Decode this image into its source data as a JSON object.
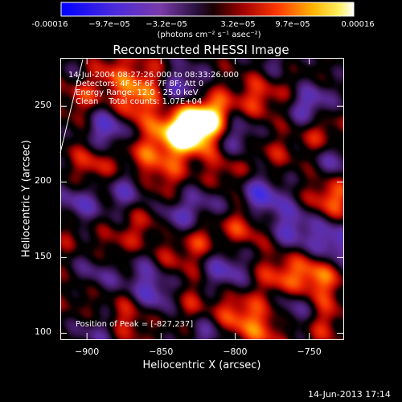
{
  "colorbar": {
    "tick_labels": [
      "-0.00016",
      "−9.7e−05",
      "−3.2e−05",
      "3.2e−05",
      "9.7e−05",
      "0.00016"
    ],
    "unit_label": "(photons cm⁻² s⁻¹ asec⁻²)",
    "range": [
      -0.00016,
      0.00016
    ]
  },
  "chart_data": {
    "type": "heatmap",
    "title": "Reconstructed RHESSI Image",
    "xlabel": "Heliocentric X (arcsec)",
    "ylabel": "Heliocentric Y (arcsec)",
    "xlim": [
      -918,
      -727
    ],
    "ylim": [
      96,
      282
    ],
    "x_ticks": [
      -900,
      -850,
      -800,
      -750
    ],
    "y_ticks": [
      100,
      150,
      200,
      250
    ],
    "x_tick_labels": [
      "−900",
      "−850",
      "−800",
      "−750"
    ],
    "y_tick_labels": [
      "100",
      "150",
      "200",
      "250"
    ],
    "annotations": [
      "14-Jul-2004 08:27:26.000 to 08:33:26.000",
      "Detectors: 4F 5F 6F 7F 8F; Att 0",
      "Energy Range: 12.0 - 25.0 keV",
      "Clean    Total counts: 1.07E+04"
    ],
    "peak_label": "Position of Peak = [-827,237]",
    "peak": [
      -827,
      237
    ],
    "colormap": "blue-purple-black-red-yellow-white",
    "colors": {
      "neg_min": "#2a22ff",
      "neg": "#5a2aa0",
      "zero": "#000000",
      "pos_low": "#c80000",
      "pos_mid": "#ff6a00",
      "pos_high": "#ffd200",
      "pos_max": "#ffffff"
    },
    "hot_spots": [
      {
        "x": -827,
        "y": 237,
        "v": 0.00016
      },
      {
        "x": -840,
        "y": 232,
        "v": 0.00013
      },
      {
        "x": -815,
        "y": 244,
        "v": 0.00011
      },
      {
        "x": -870,
        "y": 250,
        "v": 9e-05
      },
      {
        "x": -860,
        "y": 266,
        "v": 7e-05
      },
      {
        "x": -904,
        "y": 258,
        "v": 8e-05
      },
      {
        "x": -886,
        "y": 274,
        "v": 6e-05
      },
      {
        "x": -785,
        "y": 256,
        "v": 7e-05
      },
      {
        "x": -760,
        "y": 264,
        "v": 5e-05
      },
      {
        "x": -741,
        "y": 233,
        "v": 8e-05
      },
      {
        "x": -896,
        "y": 212,
        "v": 7e-05
      },
      {
        "x": -864,
        "y": 218,
        "v": 6e-05
      },
      {
        "x": -849,
        "y": 203,
        "v": 6e-05
      },
      {
        "x": -808,
        "y": 205,
        "v": 6e-05
      },
      {
        "x": -776,
        "y": 218,
        "v": 4e-05
      },
      {
        "x": -735,
        "y": 190,
        "v": 0.0001
      },
      {
        "x": -794,
        "y": 173,
        "v": 8e-05
      },
      {
        "x": -826,
        "y": 162,
        "v": 7e-05
      },
      {
        "x": -860,
        "y": 173,
        "v": 6e-05
      },
      {
        "x": -880,
        "y": 152,
        "v": 7e-05
      },
      {
        "x": -845,
        "y": 148,
        "v": 4e-05
      },
      {
        "x": -769,
        "y": 138,
        "v": 8e-05
      },
      {
        "x": -745,
        "y": 137,
        "v": 0.00011
      },
      {
        "x": -801,
        "y": 112,
        "v": 9e-05
      },
      {
        "x": -779,
        "y": 104,
        "v": 8e-05
      },
      {
        "x": -872,
        "y": 110,
        "v": 7e-05
      },
      {
        "x": -900,
        "y": 124,
        "v": 4e-05
      },
      {
        "x": -832,
        "y": 120,
        "v": 5e-05
      },
      {
        "x": -912,
        "y": 172,
        "v": 5e-05
      },
      {
        "x": -742,
        "y": 108,
        "v": 6e-05
      }
    ],
    "cold_spots": [
      {
        "x": -885,
        "y": 236,
        "v": -0.00012
      },
      {
        "x": -836,
        "y": 262,
        "v": -0.0001
      },
      {
        "x": -750,
        "y": 252,
        "v": -0.00012
      },
      {
        "x": -800,
        "y": 232,
        "v": -9e-05
      },
      {
        "x": -907,
        "y": 184,
        "v": -0.0001
      },
      {
        "x": -872,
        "y": 195,
        "v": -8e-05
      },
      {
        "x": -783,
        "y": 190,
        "v": -0.00012
      },
      {
        "x": -760,
        "y": 170,
        "v": -9e-05
      },
      {
        "x": -818,
        "y": 187,
        "v": -6e-05
      },
      {
        "x": -840,
        "y": 176,
        "v": -9e-05
      },
      {
        "x": -854,
        "y": 127,
        "v": -0.0001
      },
      {
        "x": -892,
        "y": 140,
        "v": -8e-05
      },
      {
        "x": -807,
        "y": 142,
        "v": -9e-05
      },
      {
        "x": -733,
        "y": 160,
        "v": -0.00011
      },
      {
        "x": -760,
        "y": 116,
        "v": -9e-05
      },
      {
        "x": -818,
        "y": 100,
        "v": -7e-05
      },
      {
        "x": -893,
        "y": 102,
        "v": -6e-05
      },
      {
        "x": -868,
        "y": 146,
        "v": -6e-05
      },
      {
        "x": -733,
        "y": 215,
        "v": -8e-05
      },
      {
        "x": -904,
        "y": 270,
        "v": -5e-05
      },
      {
        "x": -770,
        "y": 278,
        "v": -5e-05
      }
    ]
  },
  "footer": {
    "timestamp": "14-Jun-2013 17:14"
  }
}
